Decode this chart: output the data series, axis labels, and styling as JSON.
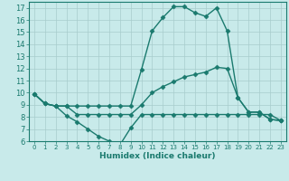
{
  "line1_x": [
    0,
    1,
    2,
    3,
    4,
    5,
    6,
    7,
    8,
    9,
    10,
    11,
    12,
    13,
    14,
    15,
    16,
    17,
    18,
    19,
    20,
    21,
    22,
    23
  ],
  "line1_y": [
    9.9,
    9.1,
    8.9,
    8.9,
    8.9,
    8.9,
    8.9,
    8.9,
    8.9,
    8.9,
    11.9,
    15.1,
    16.2,
    17.1,
    17.1,
    16.6,
    16.3,
    17.0,
    15.1,
    9.6,
    8.4,
    8.4,
    7.8,
    7.7
  ],
  "line2_x": [
    0,
    1,
    2,
    3,
    4,
    5,
    6,
    7,
    8,
    9,
    10,
    11,
    12,
    13,
    14,
    15,
    16,
    17,
    18,
    19,
    20,
    21,
    22,
    23
  ],
  "line2_y": [
    9.9,
    9.1,
    8.9,
    8.9,
    8.2,
    8.2,
    8.2,
    8.2,
    8.2,
    8.2,
    9.0,
    10.0,
    10.5,
    10.9,
    11.3,
    11.5,
    11.7,
    12.1,
    12.0,
    9.6,
    8.4,
    8.4,
    7.8,
    7.7
  ],
  "line3_x": [
    0,
    1,
    2,
    3,
    4,
    5,
    6,
    7,
    8,
    9,
    10,
    11,
    12,
    13,
    14,
    15,
    16,
    17,
    18,
    19,
    20,
    21,
    22,
    23
  ],
  "line3_y": [
    9.9,
    9.1,
    8.9,
    8.1,
    7.6,
    7.0,
    6.4,
    6.0,
    5.7,
    7.1,
    8.2,
    8.2,
    8.2,
    8.2,
    8.2,
    8.2,
    8.2,
    8.2,
    8.2,
    8.2,
    8.2,
    8.2,
    8.2,
    7.7
  ],
  "line_color": "#1a7a6e",
  "bg_color": "#c8eaea",
  "grid_color": "#a8cccc",
  "xlabel": "Humidex (Indice chaleur)",
  "ylim": [
    6,
    17.5
  ],
  "xlim": [
    -0.5,
    23.5
  ],
  "yticks": [
    6,
    7,
    8,
    9,
    10,
    11,
    12,
    13,
    14,
    15,
    16,
    17
  ],
  "xticks": [
    0,
    1,
    2,
    3,
    4,
    5,
    6,
    7,
    8,
    9,
    10,
    11,
    12,
    13,
    14,
    15,
    16,
    17,
    18,
    19,
    20,
    21,
    22,
    23
  ],
  "marker": "D",
  "markersize": 2.5,
  "linewidth": 1.0
}
